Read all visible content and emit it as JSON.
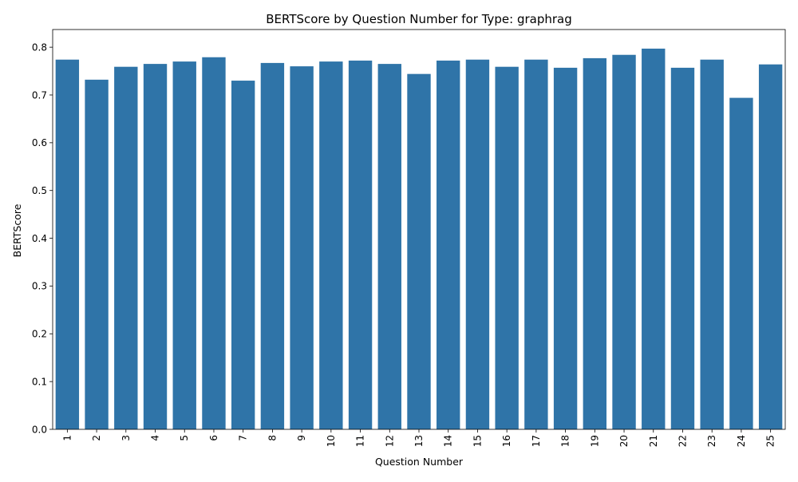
{
  "chart_data": {
    "type": "bar",
    "title": "BERTScore by Question Number for Type: graphrag",
    "xlabel": "Question Number",
    "ylabel": "BERTScore",
    "categories": [
      "1",
      "2",
      "3",
      "4",
      "5",
      "6",
      "7",
      "8",
      "9",
      "10",
      "11",
      "12",
      "13",
      "14",
      "15",
      "16",
      "17",
      "18",
      "19",
      "20",
      "21",
      "22",
      "23",
      "24",
      "25"
    ],
    "values": [
      0.774,
      0.732,
      0.759,
      0.765,
      0.77,
      0.779,
      0.73,
      0.767,
      0.76,
      0.77,
      0.772,
      0.765,
      0.744,
      0.772,
      0.774,
      0.759,
      0.774,
      0.757,
      0.777,
      0.784,
      0.797,
      0.757,
      0.774,
      0.694,
      0.764
    ],
    "ylim": [
      0,
      0.837
    ],
    "yticks": [
      "0.0",
      "0.1",
      "0.2",
      "0.3",
      "0.4",
      "0.5",
      "0.6",
      "0.7",
      "0.8"
    ],
    "grid": false,
    "bar_color": "#2f74a8",
    "x_tick_rotation": "vertical"
  }
}
